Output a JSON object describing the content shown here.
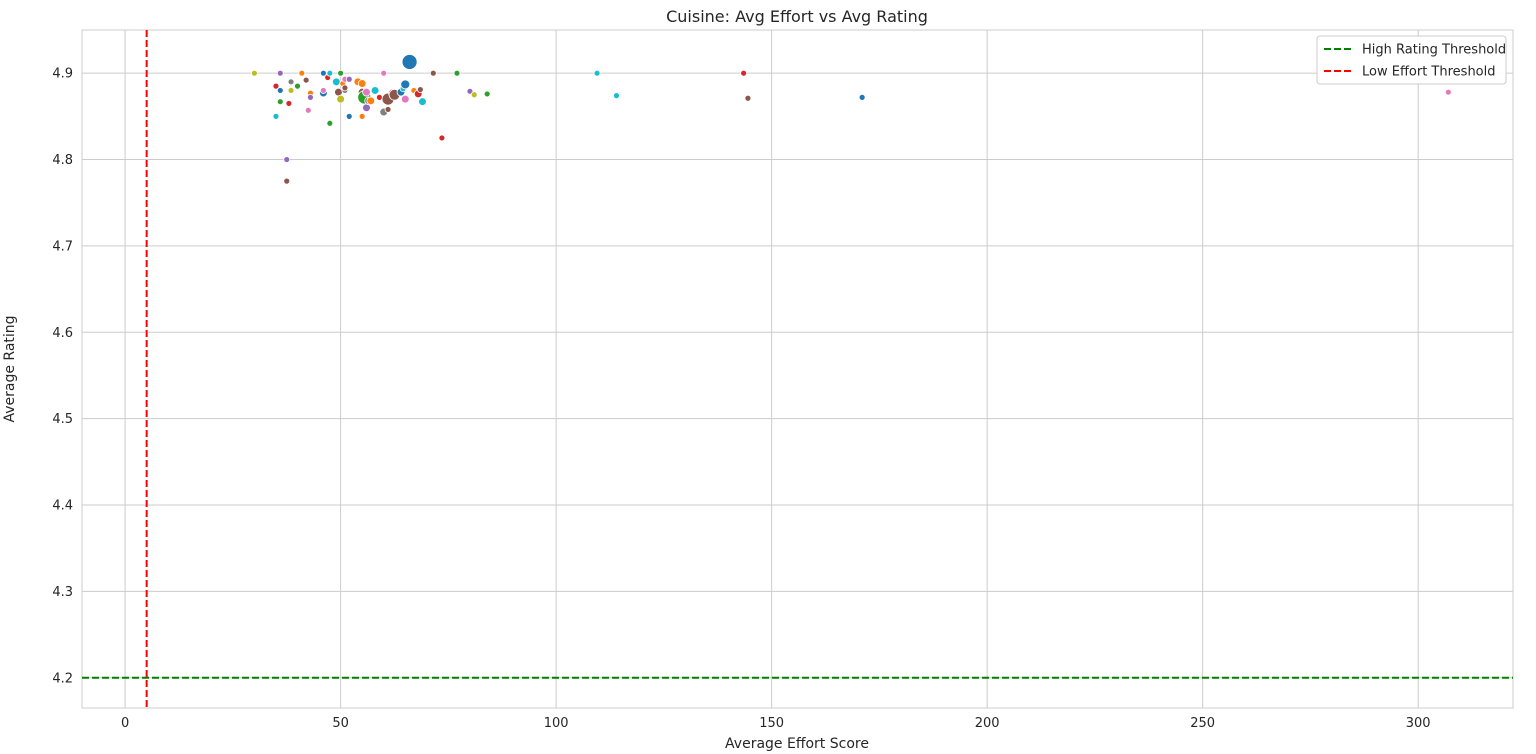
{
  "chart_data": {
    "type": "scatter",
    "title": "Cuisine: Avg Effort vs Avg Rating",
    "xlabel": "Average Effort Score",
    "ylabel": "Average Rating",
    "xlim": [
      -10,
      322
    ],
    "ylim": [
      4.165,
      4.95
    ],
    "xticks": [
      0,
      50,
      100,
      150,
      200,
      250,
      300
    ],
    "yticks": [
      4.2,
      4.3,
      4.4,
      4.5,
      4.6,
      4.7,
      4.8,
      4.9
    ],
    "grid": true,
    "legend_position": "top-right",
    "threshold_lines": [
      {
        "label": "High Rating Threshold",
        "orientation": "horizontal",
        "value": 4.2,
        "color": "#008000",
        "style": "dashed"
      },
      {
        "label": "Low Effort Threshold",
        "orientation": "vertical",
        "value": 5,
        "color": "#ff0000",
        "style": "dashed"
      }
    ],
    "points": [
      {
        "x": 30,
        "y": 4.9,
        "color": "#bcbd22",
        "size": 1
      },
      {
        "x": 36,
        "y": 4.9,
        "color": "#9467bd",
        "size": 1
      },
      {
        "x": 35,
        "y": 4.885,
        "color": "#d62728",
        "size": 1
      },
      {
        "x": 36,
        "y": 4.88,
        "color": "#1f77b4",
        "size": 1
      },
      {
        "x": 35,
        "y": 4.85,
        "color": "#17becf",
        "size": 1
      },
      {
        "x": 36,
        "y": 4.867,
        "color": "#2ca02c",
        "size": 1
      },
      {
        "x": 37.5,
        "y": 4.8,
        "color": "#9467bd",
        "size": 1
      },
      {
        "x": 37.5,
        "y": 4.775,
        "color": "#8c564b",
        "size": 1
      },
      {
        "x": 38,
        "y": 4.865,
        "color": "#d62728",
        "size": 1
      },
      {
        "x": 38.5,
        "y": 4.89,
        "color": "#7f7f7f",
        "size": 1
      },
      {
        "x": 38.5,
        "y": 4.88,
        "color": "#bcbd22",
        "size": 1
      },
      {
        "x": 40,
        "y": 4.885,
        "color": "#2ca02c",
        "size": 1
      },
      {
        "x": 41,
        "y": 4.9,
        "color": "#ff7f0e",
        "size": 1
      },
      {
        "x": 42,
        "y": 4.892,
        "color": "#8c564b",
        "size": 1
      },
      {
        "x": 43,
        "y": 4.877,
        "color": "#ff7f0e",
        "size": 1
      },
      {
        "x": 43,
        "y": 4.872,
        "color": "#9467bd",
        "size": 1
      },
      {
        "x": 42.5,
        "y": 4.857,
        "color": "#e377c2",
        "size": 1
      },
      {
        "x": 46,
        "y": 4.9,
        "color": "#1f77b4",
        "size": 1
      },
      {
        "x": 46,
        "y": 4.877,
        "color": "#1f77b4",
        "size": 1.3
      },
      {
        "x": 46,
        "y": 4.88,
        "color": "#e377c2",
        "size": 1
      },
      {
        "x": 47,
        "y": 4.895,
        "color": "#d62728",
        "size": 1
      },
      {
        "x": 47.5,
        "y": 4.9,
        "color": "#17becf",
        "size": 1
      },
      {
        "x": 47.5,
        "y": 4.842,
        "color": "#2ca02c",
        "size": 1
      },
      {
        "x": 49,
        "y": 4.89,
        "color": "#17becf",
        "size": 1.3
      },
      {
        "x": 49.5,
        "y": 4.878,
        "color": "#8c564b",
        "size": 1.3
      },
      {
        "x": 50,
        "y": 4.9,
        "color": "#2ca02c",
        "size": 1
      },
      {
        "x": 50,
        "y": 4.87,
        "color": "#bcbd22",
        "size": 1.3
      },
      {
        "x": 50.5,
        "y": 4.888,
        "color": "#ff7f0e",
        "size": 1
      },
      {
        "x": 51,
        "y": 4.88,
        "color": "#7f7f7f",
        "size": 1
      },
      {
        "x": 51,
        "y": 4.893,
        "color": "#e377c2",
        "size": 1
      },
      {
        "x": 51,
        "y": 4.883,
        "color": "#8c564b",
        "size": 1
      },
      {
        "x": 52,
        "y": 4.893,
        "color": "#9467bd",
        "size": 1
      },
      {
        "x": 52,
        "y": 4.85,
        "color": "#1f77b4",
        "size": 1
      },
      {
        "x": 54,
        "y": 4.89,
        "color": "#ff7f0e",
        "size": 1.3
      },
      {
        "x": 55,
        "y": 4.888,
        "color": "#ff7f0e",
        "size": 1.3
      },
      {
        "x": 55,
        "y": 4.878,
        "color": "#8c564b",
        "size": 1.3
      },
      {
        "x": 55,
        "y": 4.85,
        "color": "#ff7f0e",
        "size": 1
      },
      {
        "x": 55.5,
        "y": 4.872,
        "color": "#2ca02c",
        "size": 2.2
      },
      {
        "x": 56,
        "y": 4.86,
        "color": "#9467bd",
        "size": 1.3
      },
      {
        "x": 56,
        "y": 4.878,
        "color": "#e377c2",
        "size": 1.3
      },
      {
        "x": 56.5,
        "y": 4.868,
        "color": "#7f7f7f",
        "size": 1.3
      },
      {
        "x": 57,
        "y": 4.868,
        "color": "#ff7f0e",
        "size": 1.3
      },
      {
        "x": 58,
        "y": 4.88,
        "color": "#17becf",
        "size": 1.3
      },
      {
        "x": 59,
        "y": 4.872,
        "color": "#d62728",
        "size": 1
      },
      {
        "x": 60,
        "y": 4.9,
        "color": "#e377c2",
        "size": 1
      },
      {
        "x": 60,
        "y": 4.855,
        "color": "#7f7f7f",
        "size": 1.3
      },
      {
        "x": 61,
        "y": 4.87,
        "color": "#8c564b",
        "size": 2
      },
      {
        "x": 61,
        "y": 4.858,
        "color": "#8c564b",
        "size": 1
      },
      {
        "x": 62,
        "y": 4.877,
        "color": "#d62728",
        "size": 1.3
      },
      {
        "x": 62.5,
        "y": 4.875,
        "color": "#8c564b",
        "size": 1.8
      },
      {
        "x": 64,
        "y": 4.878,
        "color": "#1f77b4",
        "size": 1.3
      },
      {
        "x": 64.5,
        "y": 4.882,
        "color": "#17becf",
        "size": 1
      },
      {
        "x": 65,
        "y": 4.887,
        "color": "#1f77b4",
        "size": 1.5
      },
      {
        "x": 65,
        "y": 4.87,
        "color": "#e377c2",
        "size": 1.3
      },
      {
        "x": 66,
        "y": 4.913,
        "color": "#1f77b4",
        "size": 2.5
      },
      {
        "x": 67,
        "y": 4.88,
        "color": "#ff7f0e",
        "size": 1
      },
      {
        "x": 68,
        "y": 4.876,
        "color": "#d62728",
        "size": 1.3
      },
      {
        "x": 68.5,
        "y": 4.881,
        "color": "#8c564b",
        "size": 1
      },
      {
        "x": 69,
        "y": 4.867,
        "color": "#17becf",
        "size": 1.3
      },
      {
        "x": 71.5,
        "y": 4.9,
        "color": "#8c564b",
        "size": 1
      },
      {
        "x": 73.5,
        "y": 4.825,
        "color": "#d62728",
        "size": 1
      },
      {
        "x": 77,
        "y": 4.9,
        "color": "#2ca02c",
        "size": 1
      },
      {
        "x": 80,
        "y": 4.879,
        "color": "#9467bd",
        "size": 1
      },
      {
        "x": 81,
        "y": 4.875,
        "color": "#bcbd22",
        "size": 1
      },
      {
        "x": 84,
        "y": 4.876,
        "color": "#2ca02c",
        "size": 1
      },
      {
        "x": 109.5,
        "y": 4.9,
        "color": "#17becf",
        "size": 1
      },
      {
        "x": 114,
        "y": 4.874,
        "color": "#17becf",
        "size": 1
      },
      {
        "x": 143.5,
        "y": 4.9,
        "color": "#d62728",
        "size": 1
      },
      {
        "x": 144.5,
        "y": 4.871,
        "color": "#8c564b",
        "size": 1
      },
      {
        "x": 171,
        "y": 4.872,
        "color": "#1f77b4",
        "size": 1
      },
      {
        "x": 307,
        "y": 4.878,
        "color": "#e377c2",
        "size": 1
      }
    ]
  }
}
